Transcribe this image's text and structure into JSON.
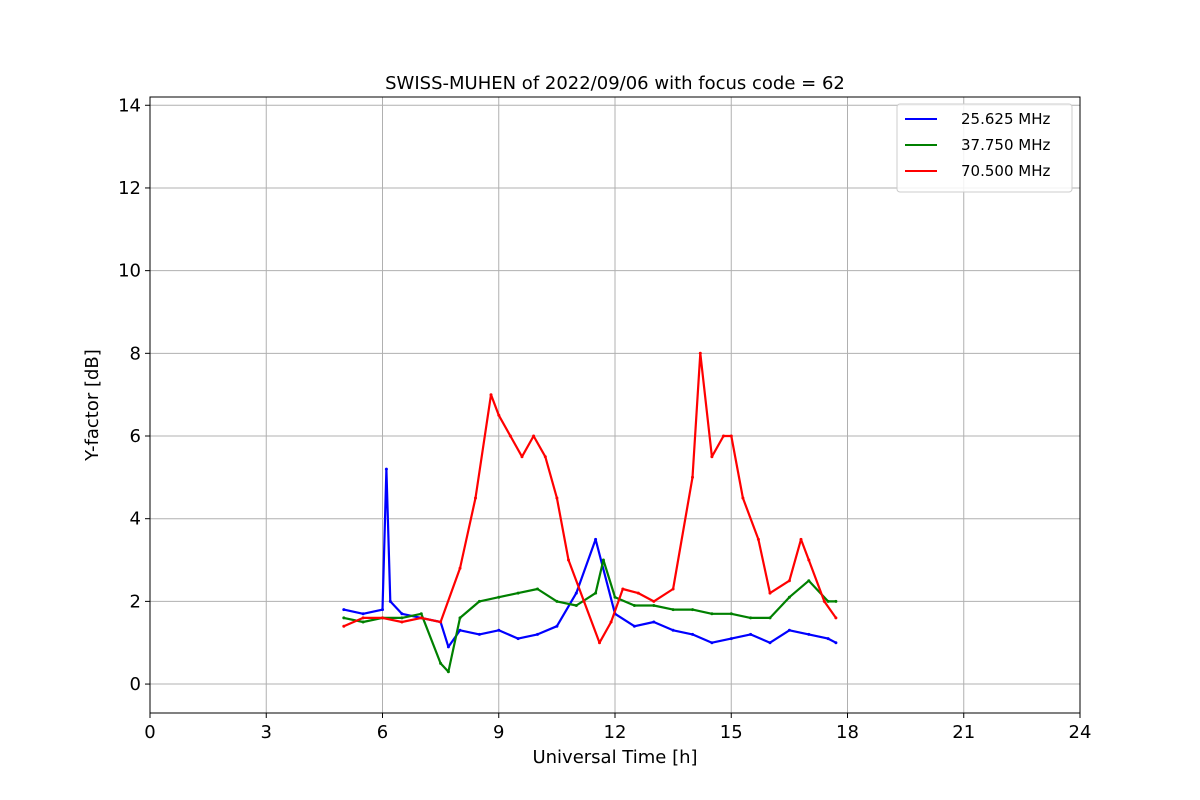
{
  "chart_data": {
    "type": "line",
    "title": "SWISS-MUHEN of 2022/09/06 with focus code = 62",
    "xlabel": "Universal Time [h]",
    "ylabel": "Y-factor [dB]",
    "xlim": [
      0,
      24
    ],
    "ylim": [
      -0.7,
      14.2
    ],
    "xticks": [
      0,
      3,
      6,
      9,
      12,
      15,
      18,
      21,
      24
    ],
    "yticks": [
      0,
      2,
      4,
      6,
      8,
      10,
      12,
      14
    ],
    "grid": true,
    "legend_position": "top-right",
    "series": [
      {
        "name": "25.625 MHz",
        "color": "#0000ff",
        "x": [
          5.0,
          5.5,
          6.0,
          6.1,
          6.2,
          6.5,
          7.0,
          7.5,
          7.7,
          8.0,
          8.5,
          9.0,
          9.5,
          10.0,
          10.5,
          11.0,
          11.5,
          12.0,
          12.5,
          13.0,
          13.5,
          14.0,
          14.5,
          15.0,
          15.5,
          16.0,
          16.5,
          17.0,
          17.5,
          17.7
        ],
        "values": [
          1.8,
          1.7,
          1.8,
          5.2,
          2.0,
          1.7,
          1.6,
          1.5,
          0.9,
          1.3,
          1.2,
          1.3,
          1.1,
          1.2,
          1.4,
          2.2,
          3.5,
          1.7,
          1.4,
          1.5,
          1.3,
          1.2,
          1.0,
          1.1,
          1.2,
          1.0,
          1.3,
          1.2,
          1.1,
          1.0
        ]
      },
      {
        "name": "37.750 MHz",
        "color": "#008000",
        "x": [
          5.0,
          5.5,
          6.0,
          6.5,
          7.0,
          7.5,
          7.7,
          8.0,
          8.5,
          9.0,
          9.5,
          10.0,
          10.5,
          11.0,
          11.5,
          11.7,
          12.0,
          12.5,
          13.0,
          13.5,
          14.0,
          14.5,
          15.0,
          15.5,
          16.0,
          16.5,
          17.0,
          17.5,
          17.7
        ],
        "values": [
          1.6,
          1.5,
          1.6,
          1.6,
          1.7,
          0.5,
          0.3,
          1.6,
          2.0,
          2.1,
          2.2,
          2.3,
          2.0,
          1.9,
          2.2,
          3.0,
          2.1,
          1.9,
          1.9,
          1.8,
          1.8,
          1.7,
          1.7,
          1.6,
          1.6,
          2.1,
          2.5,
          2.0,
          2.0
        ]
      },
      {
        "name": "70.500 MHz",
        "color": "#ff0000",
        "x": [
          5.0,
          5.5,
          6.0,
          6.5,
          7.0,
          7.5,
          8.0,
          8.4,
          8.8,
          9.0,
          9.3,
          9.6,
          9.9,
          10.2,
          10.5,
          10.8,
          11.2,
          11.6,
          11.9,
          12.2,
          12.6,
          13.0,
          13.5,
          14.0,
          14.2,
          14.5,
          14.8,
          15.0,
          15.3,
          15.7,
          16.0,
          16.5,
          16.8,
          17.0,
          17.4,
          17.7
        ],
        "values": [
          1.4,
          1.6,
          1.6,
          1.5,
          1.6,
          1.5,
          2.8,
          4.5,
          7.0,
          6.5,
          6.0,
          5.5,
          6.0,
          5.5,
          4.5,
          3.0,
          2.0,
          1.0,
          1.5,
          2.3,
          2.2,
          2.0,
          2.3,
          5.0,
          8.0,
          5.5,
          6.0,
          6.0,
          4.5,
          3.5,
          2.2,
          2.5,
          3.5,
          3.0,
          2.0,
          1.6
        ]
      }
    ]
  }
}
